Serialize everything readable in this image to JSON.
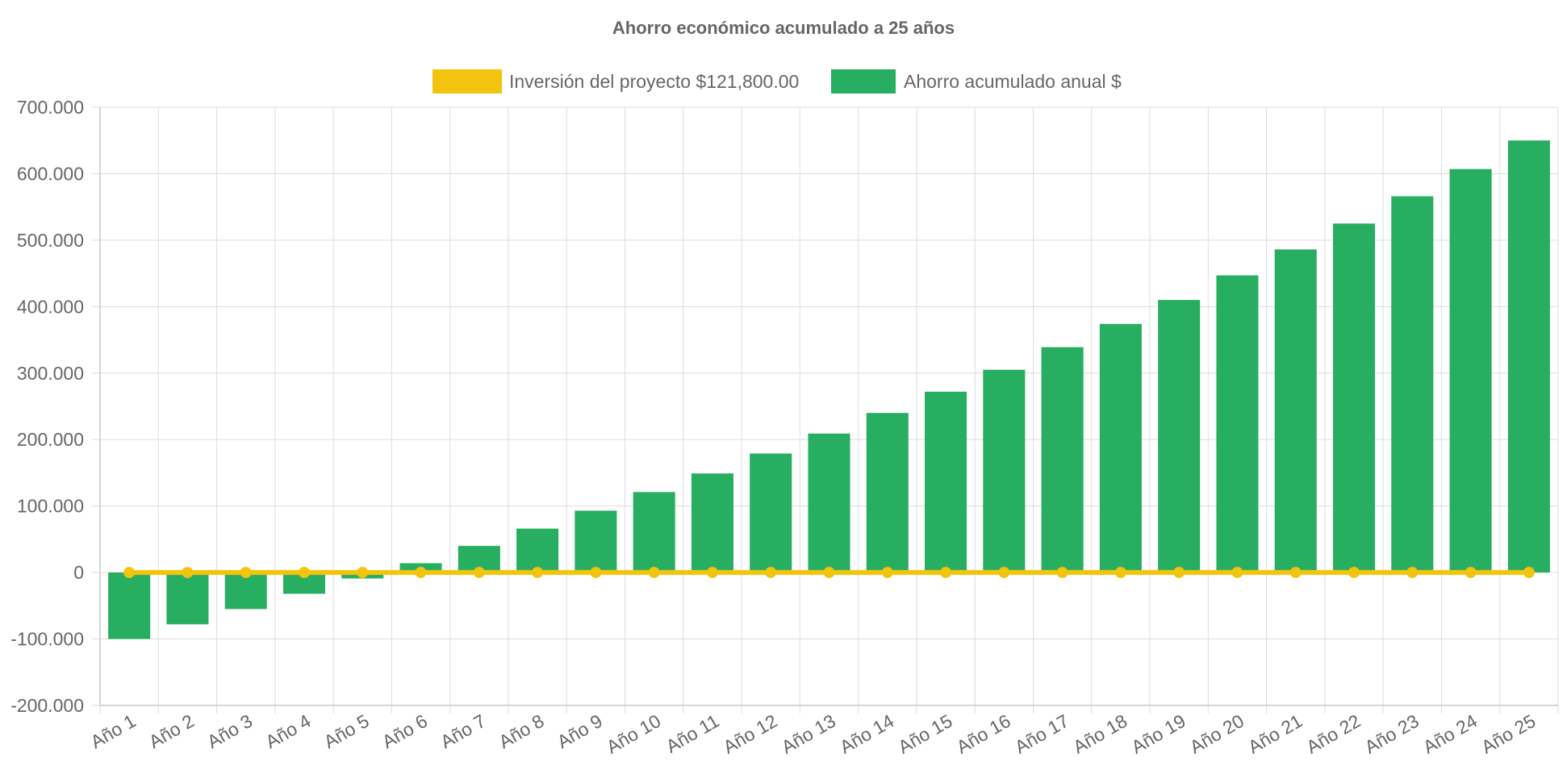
{
  "chart_data": {
    "type": "bar",
    "title": "Ahorro económico acumulado a 25 años",
    "xlabel": "",
    "ylabel": "",
    "categories": [
      "Año 1",
      "Año 2",
      "Año 3",
      "Año 4",
      "Año 5",
      "Año 6",
      "Año 7",
      "Año 8",
      "Año 9",
      "Año 10",
      "Año 11",
      "Año 12",
      "Año 13",
      "Año 14",
      "Año 15",
      "Año 16",
      "Año 17",
      "Año 18",
      "Año 19",
      "Año 20",
      "Año 21",
      "Año 22",
      "Año 23",
      "Año 24",
      "Año 25"
    ],
    "ylim": [
      -200000,
      700000
    ],
    "yticks": [
      700000,
      600000,
      500000,
      400000,
      300000,
      200000,
      100000,
      0,
      -100000,
      -200000
    ],
    "ytick_labels": [
      "700.000",
      "600.000",
      "500.000",
      "400.000",
      "300.000",
      "200.000",
      "100.000",
      "0",
      "-100.000",
      "-200.000"
    ],
    "grid": true,
    "legend_position": "top-center",
    "series": [
      {
        "name": "Inversión del proyecto $121,800.00",
        "type": "line",
        "color": "#f2c40f",
        "values": [
          0,
          0,
          0,
          0,
          0,
          0,
          0,
          0,
          0,
          0,
          0,
          0,
          0,
          0,
          0,
          0,
          0,
          0,
          0,
          0,
          0,
          0,
          0,
          0,
          0
        ]
      },
      {
        "name": "Ahorro acumulado anual $",
        "type": "bar",
        "color": "#27ae60",
        "values": [
          -100000,
          -78000,
          -55000,
          -32000,
          -9000,
          14000,
          40000,
          66000,
          93000,
          121000,
          149000,
          179000,
          209000,
          240000,
          272000,
          305000,
          339000,
          374000,
          410000,
          447000,
          486000,
          525000,
          566000,
          607000,
          650000
        ]
      }
    ]
  }
}
